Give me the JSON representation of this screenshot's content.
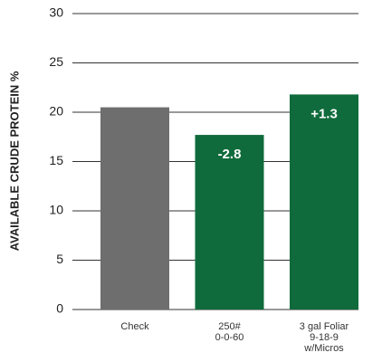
{
  "chart_data": {
    "type": "bar",
    "y_label": "AVAILABLE CRUDE PROTEIN %",
    "categories": [
      [
        "Check"
      ],
      [
        "250#",
        "0-0-60"
      ],
      [
        "3 gal Foliar",
        "9-18-9",
        "w/Micros"
      ]
    ],
    "values": [
      20.5,
      17.7,
      21.8
    ],
    "annotations": [
      null,
      "-2.8",
      "+1.3"
    ],
    "colors": [
      "#6d6e6d",
      "#0f6b3b",
      "#0f6b3b"
    ],
    "ylim": [
      0,
      30
    ],
    "yticks": [
      0,
      5,
      10,
      15,
      20,
      25,
      30
    ],
    "grid": true
  }
}
